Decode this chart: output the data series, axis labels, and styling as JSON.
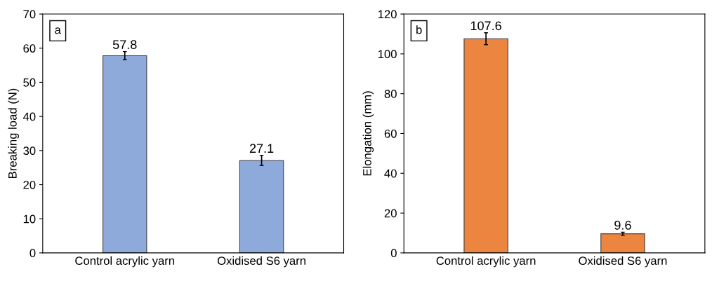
{
  "chart_data": [
    {
      "type": "bar",
      "ylabel": "Breaking load (N)",
      "categories": [
        "Control acrylic yarn",
        "Oxidised S6 yarn"
      ],
      "values": [
        57.8,
        27.1
      ],
      "errors": [
        1.2,
        1.5
      ],
      "color": "#8eaadb",
      "ylim": [
        0,
        70
      ],
      "yticks": [
        0,
        10,
        20,
        30,
        40,
        50,
        60,
        70
      ],
      "data_labels": true,
      "grid": false,
      "annotations": [
        "a"
      ]
    },
    {
      "type": "bar",
      "ylabel": "Elongation (mm)",
      "categories": [
        "Control acrylic yarn",
        "Oxidised S6 yarn"
      ],
      "values": [
        107.6,
        9.6
      ],
      "errors": [
        3.0,
        0.8
      ],
      "color": "#ec8540",
      "ylim": [
        0,
        120
      ],
      "yticks": [
        0,
        20,
        40,
        60,
        80,
        100,
        120
      ],
      "data_labels": true,
      "grid": false,
      "annotations": [
        "b"
      ]
    }
  ]
}
